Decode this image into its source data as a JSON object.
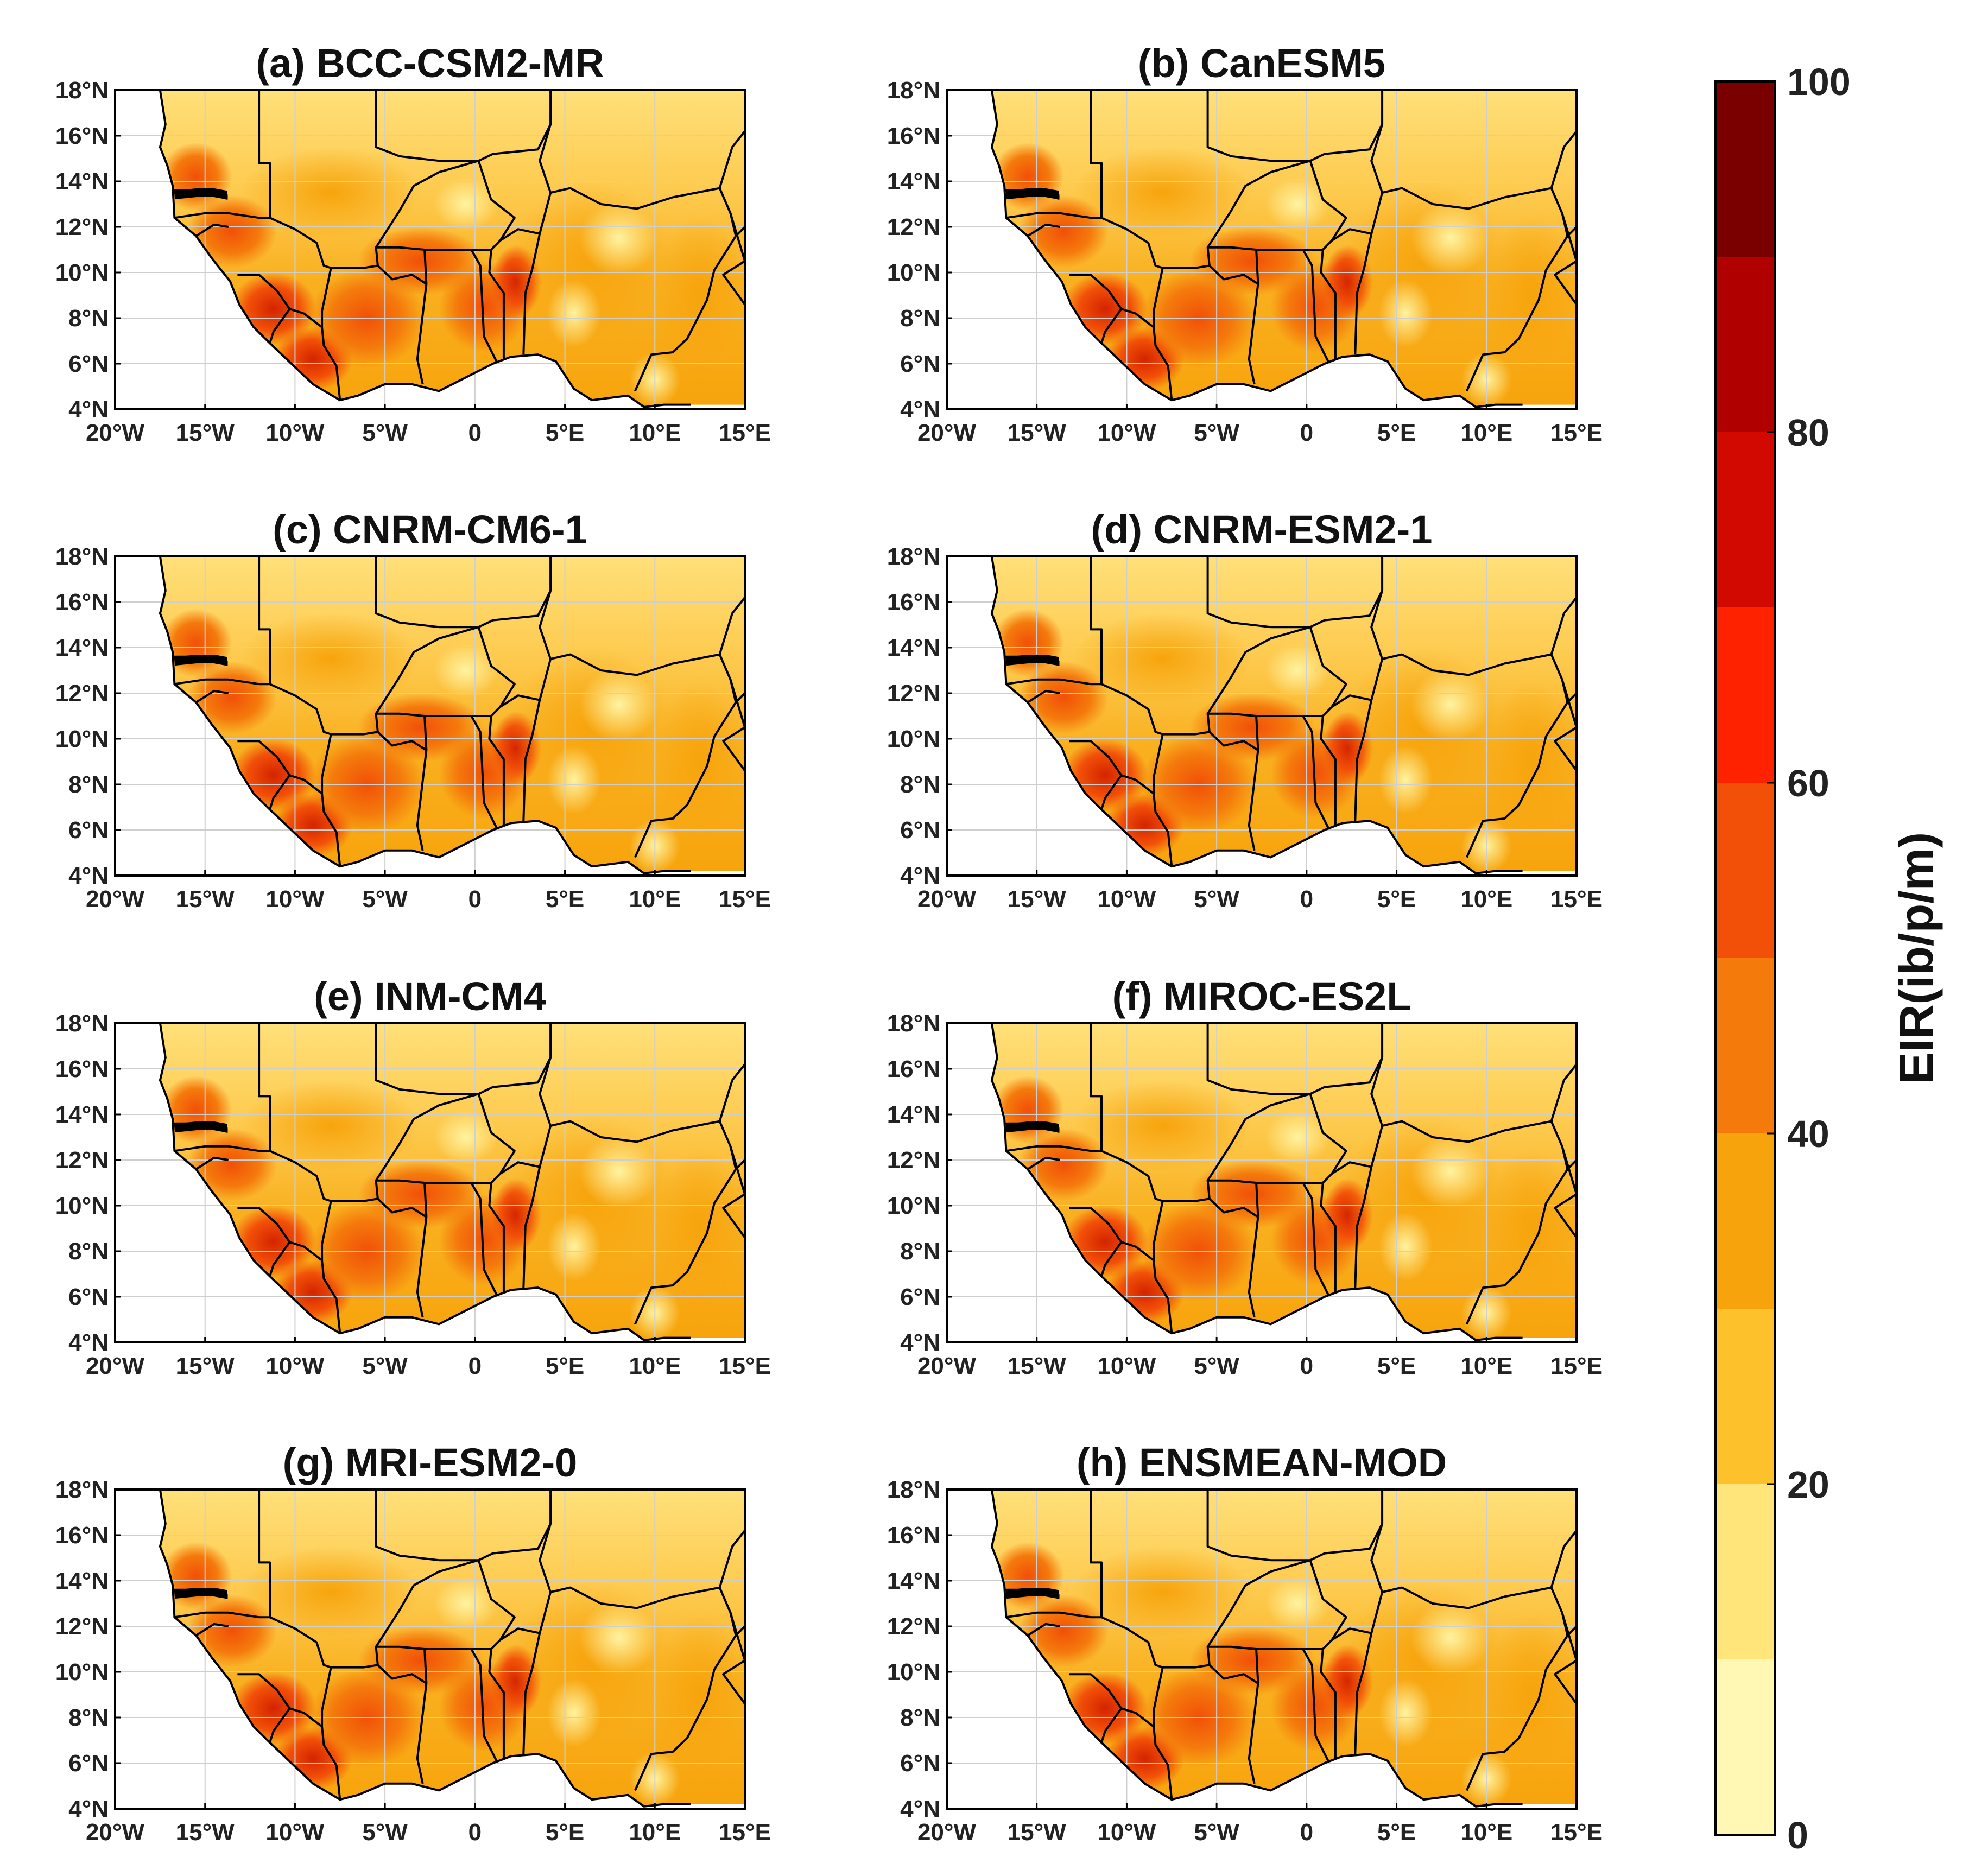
{
  "figure": {
    "panels": [
      {
        "title": "(a) BCC-CSM2-MR"
      },
      {
        "title": "(b) CanESM5"
      },
      {
        "title": "(c) CNRM-CM6-1"
      },
      {
        "title": "(d) CNRM-ESM2-1"
      },
      {
        "title": "(e) INM-CM4"
      },
      {
        "title": "(f) MIROC-ES2L"
      },
      {
        "title": "(g) MRI-ESM2-0"
      },
      {
        "title": "(h) ENSMEAN-MOD"
      }
    ],
    "lat_ticks": [
      "4°N",
      "6°N",
      "8°N",
      "10°N",
      "12°N",
      "14°N",
      "16°N",
      "18°N"
    ],
    "lon_ticks": [
      "20°W",
      "15°W",
      "10°W",
      "5°W",
      "0",
      "5°E",
      "10°E",
      "15°E"
    ],
    "lat_values": [
      4,
      6,
      8,
      10,
      12,
      14,
      16,
      18
    ],
    "lon_values": [
      -20,
      -15,
      -10,
      -5,
      0,
      5,
      10,
      15
    ],
    "colorbar": {
      "label": "EIR(ib/p/m)",
      "ticks": [
        "0",
        "20",
        "40",
        "60",
        "80",
        "100"
      ],
      "tick_values": [
        0,
        20,
        40,
        60,
        80,
        100
      ],
      "levels": [
        0,
        10,
        20,
        30,
        40,
        50,
        60,
        70,
        80,
        90,
        100
      ],
      "colors": [
        "#fff8b4",
        "#ffe57a",
        "#fdc12c",
        "#f7a40c",
        "#f47a0c",
        "#f25008",
        "#ff2200",
        "#d20900",
        "#b00000",
        "#7a0000"
      ]
    }
  }
}
